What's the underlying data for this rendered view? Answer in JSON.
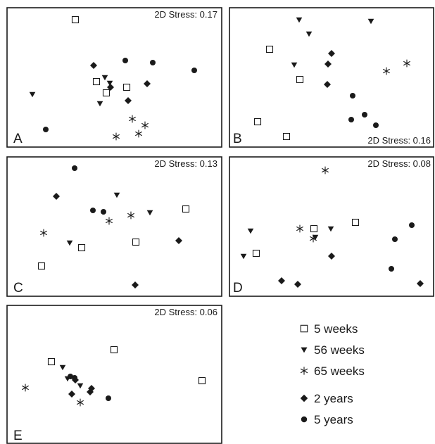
{
  "chart_data": [
    {
      "type": "scatter",
      "panel": "A",
      "stress_label": "2D Stress: 0.17",
      "stress_position": "top-right",
      "points": {
        "5_weeks": [
          [
            107,
            28
          ],
          [
            137,
            116
          ],
          [
            151,
            132
          ],
          [
            180,
            124
          ]
        ],
        "56_weeks": [
          [
            46,
            134
          ],
          [
            149,
            110
          ],
          [
            156,
            118
          ],
          [
            142,
            147
          ]
        ],
        "65_weeks": [
          [
            188,
            169
          ],
          [
            206,
            178
          ],
          [
            197,
            190
          ],
          [
            165,
            194
          ]
        ],
        "2_years": [
          [
            133,
            93
          ],
          [
            157,
            124
          ],
          [
            209,
            119
          ],
          [
            182,
            143
          ]
        ],
        "5_years": [
          [
            178,
            86
          ],
          [
            217,
            89
          ],
          [
            276,
            100
          ],
          [
            65,
            184
          ]
        ]
      }
    },
    {
      "type": "scatter",
      "panel": "B",
      "stress_label": "2D Stress: 0.16",
      "stress_position": "bottom-right",
      "points": {
        "5_weeks": [
          [
            383,
            70
          ],
          [
            426,
            113
          ],
          [
            366,
            173
          ],
          [
            407,
            194
          ]
        ],
        "56_weeks": [
          [
            425,
            28
          ],
          [
            439,
            48
          ],
          [
            527,
            30
          ],
          [
            418,
            92
          ]
        ],
        "65_weeks": [
          [
            549,
            101
          ],
          [
            578,
            90
          ]
        ],
        "2_years": [
          [
            471,
            76
          ],
          [
            466,
            91
          ],
          [
            465,
            120
          ]
        ],
        "5_years": [
          [
            501,
            136
          ],
          [
            518,
            163
          ],
          [
            499,
            170
          ],
          [
            534,
            178
          ]
        ]
      }
    },
    {
      "type": "scatter",
      "panel": "C",
      "stress_label": "2D Stress: 0.13",
      "stress_position": "top-right",
      "points": {
        "5_weeks": [
          [
            264,
            297
          ],
          [
            116,
            352
          ],
          [
            193,
            344
          ],
          [
            59,
            378
          ]
        ],
        "56_weeks": [
          [
            166,
            277
          ],
          [
            213,
            302
          ],
          [
            99,
            345
          ]
        ],
        "65_weeks": [
          [
            155,
            314
          ],
          [
            186,
            306
          ],
          [
            62,
            331
          ]
        ],
        "2_years": [
          [
            80,
            279
          ],
          [
            254,
            342
          ],
          [
            192,
            405
          ]
        ],
        "5_years": [
          [
            106,
            239
          ],
          [
            132,
            299
          ],
          [
            147,
            301
          ]
        ]
      }
    },
    {
      "type": "scatter",
      "panel": "D",
      "stress_label": "2D Stress: 0.08",
      "stress_position": "top-right",
      "points": {
        "5_weeks": [
          [
            505,
            316
          ],
          [
            446,
            325
          ],
          [
            364,
            360
          ]
        ],
        "56_weeks": [
          [
            356,
            328
          ],
          [
            470,
            325
          ],
          [
            448,
            337
          ],
          [
            346,
            364
          ]
        ],
        "65_weeks": [
          [
            462,
            242
          ],
          [
            426,
            325
          ],
          [
            445,
            339
          ]
        ],
        "2_years": [
          [
            471,
            364
          ],
          [
            400,
            399
          ],
          [
            423,
            404
          ],
          [
            597,
            403
          ]
        ],
        "5_years": [
          [
            585,
            320
          ],
          [
            561,
            340
          ],
          [
            556,
            382
          ]
        ]
      }
    },
    {
      "type": "scatter",
      "panel": "E",
      "stress_label": "2D Stress: 0.06",
      "stress_position": "top-right",
      "points": {
        "5_weeks": [
          [
            162,
            497
          ],
          [
            73,
            514
          ],
          [
            287,
            541
          ]
        ],
        "56_weeks": [
          [
            89,
            522
          ],
          [
            96,
            538
          ],
          [
            114,
            548
          ]
        ],
        "65_weeks": [
          [
            36,
            551
          ],
          [
            114,
            572
          ]
        ],
        "2_years": [
          [
            107,
            540
          ],
          [
            130,
            552
          ],
          [
            128,
            557
          ],
          [
            102,
            560
          ]
        ],
        "5_years": [
          [
            100,
            535
          ],
          [
            106,
            537
          ],
          [
            154,
            566
          ]
        ]
      }
    }
  ],
  "legend": [
    {
      "key": "5_weeks",
      "label": "5 weeks",
      "marker": "open-square"
    },
    {
      "key": "56_weeks",
      "label": "56 weeks",
      "marker": "down-triangle"
    },
    {
      "key": "65_weeks",
      "label": "65 weeks",
      "marker": "asterisk"
    },
    {
      "key": "2_years",
      "label": "2 years",
      "marker": "diamond"
    },
    {
      "key": "5_years",
      "label": "5 years",
      "marker": "filled-circle"
    }
  ],
  "colors": {
    "ink": "#1a1a1a",
    "background": "#ffffff"
  }
}
